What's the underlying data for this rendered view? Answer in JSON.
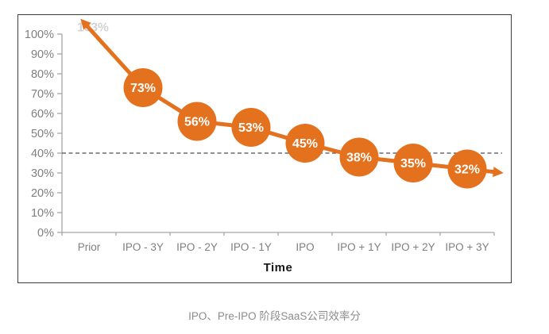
{
  "caption": "IPO、Pre-IPO 阶段SaaS公司效率分",
  "chart_data": {
    "type": "line",
    "title": "IPO、Pre-IPO 阶段SaaS公司效率分",
    "xlabel": "Time",
    "ylabel": "",
    "categories": [
      "Prior",
      "IPO - 3Y",
      "IPO - 2Y",
      "IPO - 1Y",
      "IPO",
      "IPO + 1Y",
      "IPO + 2Y",
      "IPO + 3Y"
    ],
    "values": [
      103,
      73,
      56,
      53,
      45,
      38,
      35,
      32
    ],
    "point_labels": [
      "103%",
      "73%",
      "56%",
      "53%",
      "45%",
      "38%",
      "35%",
      "32%"
    ],
    "first_point_offscale": true,
    "yticks": [
      "0%",
      "10%",
      "20%",
      "30%",
      "40%",
      "50%",
      "60%",
      "70%",
      "80%",
      "90%",
      "100%"
    ],
    "ylim": [
      0,
      100
    ],
    "benchmark_value": 40,
    "grid": "off",
    "legend": "none",
    "colors": {
      "line": "#E4711E",
      "bubble": "#E4711E",
      "bubble_text": "#FFFFFF",
      "axis": "#a6a6a6",
      "tick_label": "#7f7f7f",
      "dashed": "#4d4d55",
      "faded_label": "#d2d2d2",
      "frame": "#3c3c3c",
      "caption": "#8c8c8c",
      "xlabel_color": "#161616"
    }
  }
}
